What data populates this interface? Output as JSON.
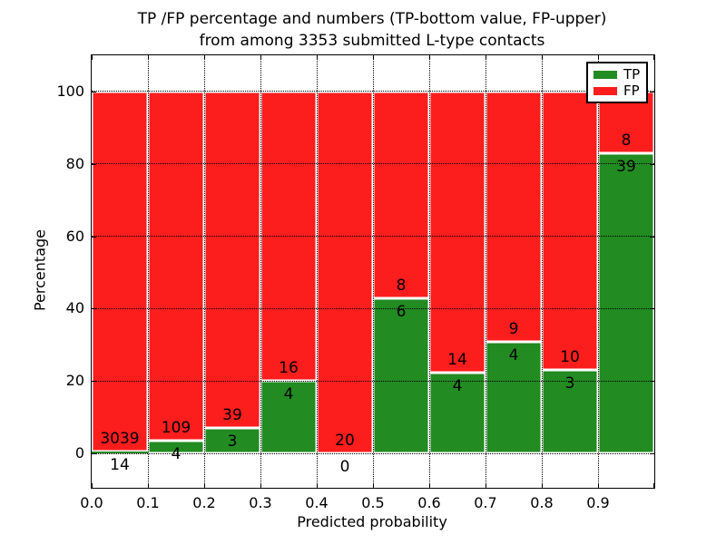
{
  "chart_data": {
    "type": "bar",
    "stacking": "percent",
    "title": "TP /FP percentage and numbers (TP-bottom value, FP-upper)",
    "subtitle": "from among 3353 submitted L-type contacts",
    "xlabel": "Predicted probability",
    "ylabel": "Percentage",
    "x_tick_labels": [
      "0.0",
      "0.1",
      "0.2",
      "0.3",
      "0.4",
      "0.5",
      "0.6",
      "0.7",
      "0.8",
      "0.9"
    ],
    "y_ticks": [
      0,
      20,
      40,
      60,
      80,
      100
    ],
    "ylim": [
      -9.5,
      110
    ],
    "xlim": [
      0.0,
      1.0
    ],
    "bin_width": 0.1,
    "grid": "dotted",
    "legend_position": "upper right",
    "legend": [
      {
        "label": "TP",
        "color": "#228b22"
      },
      {
        "label": "FP",
        "color": "#fc1d1d"
      }
    ],
    "total_contacts_text": "3353",
    "bins": [
      {
        "range": "0.0-0.1",
        "tp": 14,
        "fp": 3039,
        "tp_pct": 0.46
      },
      {
        "range": "0.1-0.2",
        "tp": 4,
        "fp": 109,
        "tp_pct": 3.54
      },
      {
        "range": "0.2-0.3",
        "tp": 3,
        "fp": 39,
        "tp_pct": 7.14
      },
      {
        "range": "0.3-0.4",
        "tp": 4,
        "fp": 16,
        "tp_pct": 20.0
      },
      {
        "range": "0.4-0.5",
        "tp": 0,
        "fp": 20,
        "tp_pct": 0.0
      },
      {
        "range": "0.5-0.6",
        "tp": 6,
        "fp": 8,
        "tp_pct": 42.86
      },
      {
        "range": "0.6-0.7",
        "tp": 4,
        "fp": 14,
        "tp_pct": 22.22
      },
      {
        "range": "0.7-0.8",
        "tp": 4,
        "fp": 9,
        "tp_pct": 30.77
      },
      {
        "range": "0.8-0.9",
        "tp": 3,
        "fp": 10,
        "tp_pct": 23.08
      },
      {
        "range": "0.9-1.0",
        "tp": 39,
        "fp": 8,
        "tp_pct": 82.98
      }
    ],
    "colors": {
      "axis": "#000000",
      "grid": "#000000",
      "bar_edge": "#ffffff",
      "background": "#ffffff"
    }
  }
}
